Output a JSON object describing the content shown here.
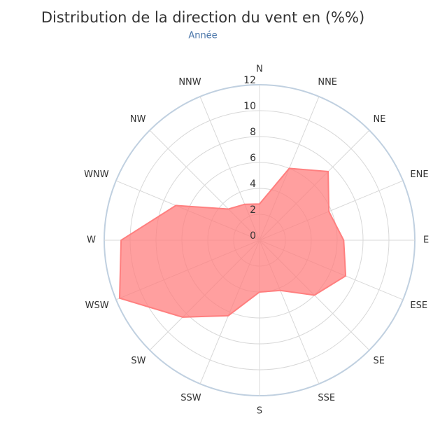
{
  "chart_data": {
    "type": "polar_area",
    "title": "Distribution de la direction du vent en (%%)",
    "subtitle": "Année",
    "categories": [
      "N",
      "NNE",
      "NE",
      "ENE",
      "E",
      "ESE",
      "SE",
      "SSE",
      "S",
      "SSW",
      "SW",
      "WSW",
      "W",
      "WNW",
      "NW",
      "NNW"
    ],
    "values": [
      2.8,
      6,
      7.5,
      5.8,
      6.5,
      7.2,
      6,
      4.2,
      4,
      6.3,
      8.4,
      11.7,
      10.7,
      7,
      3.4,
      3
    ],
    "color": "#ff7f7f",
    "ylim": [
      0,
      12
    ],
    "yticks": [
      0,
      2,
      4,
      6,
      8,
      10,
      12
    ],
    "grid": true
  }
}
